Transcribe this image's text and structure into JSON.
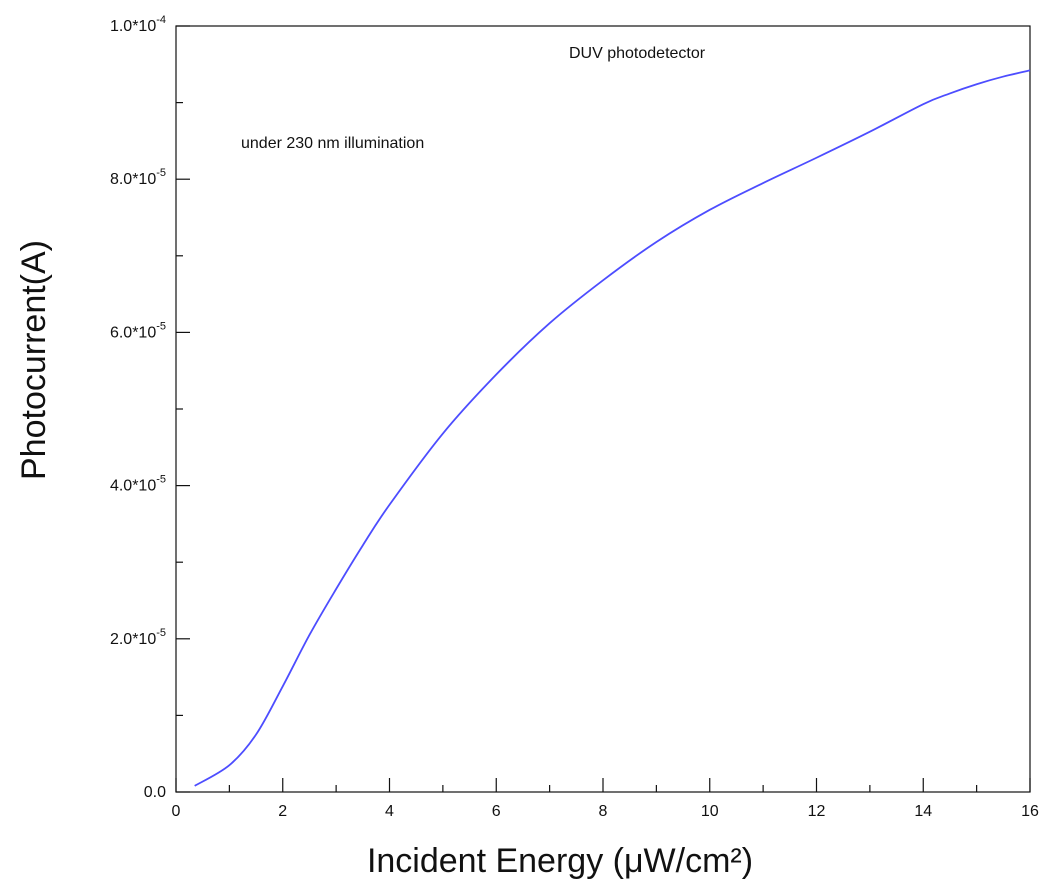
{
  "chart_data": {
    "type": "line",
    "title": "",
    "xlabel": "Incident Energy (μW/cm²)",
    "ylabel": "Photocurrent(A)",
    "xlim": [
      0,
      16
    ],
    "ylim": [
      0,
      0.0001
    ],
    "x_ticks": [
      0,
      2,
      4,
      6,
      8,
      10,
      12,
      14,
      16
    ],
    "x_tick_labels": [
      "0",
      "2",
      "4",
      "6",
      "8",
      "10",
      "12",
      "14",
      "16"
    ],
    "y_ticks": [
      0,
      2e-05,
      4e-05,
      6e-05,
      8e-05,
      0.0001
    ],
    "y_tick_labels": [
      {
        "mantissa": "0.0",
        "exponent": ""
      },
      {
        "mantissa": "2.0*10",
        "exponent": "-5"
      },
      {
        "mantissa": "4.0*10",
        "exponent": "-5"
      },
      {
        "mantissa": "6.0*10",
        "exponent": "-5"
      },
      {
        "mantissa": "8.0*10",
        "exponent": "-5"
      },
      {
        "mantissa": "1.0*10",
        "exponent": "-4"
      }
    ],
    "grid": false,
    "legend": "none",
    "annotations": [
      "DUV photodetector",
      "under 230 nm illumination"
    ],
    "series": [
      {
        "color": "#4d4dff",
        "x": [
          0.35,
          1.0,
          1.5,
          2.0,
          2.5,
          3.0,
          3.5,
          4.0,
          5.0,
          6.0,
          7.0,
          8.0,
          9.0,
          10.0,
          11.0,
          12.0,
          13.0,
          14.0,
          14.5,
          15.0,
          15.5,
          16.0
        ],
        "y": [
          8e-07,
          3.5e-06,
          7.5e-06,
          1.38e-05,
          2.05e-05,
          2.65e-05,
          3.22e-05,
          3.75e-05,
          4.68e-05,
          5.45e-05,
          6.12e-05,
          6.68e-05,
          7.18e-05,
          7.6e-05,
          7.95e-05,
          8.28e-05,
          8.62e-05,
          8.98e-05,
          9.12e-05,
          9.24e-05,
          9.34e-05,
          9.42e-05
        ]
      }
    ]
  }
}
